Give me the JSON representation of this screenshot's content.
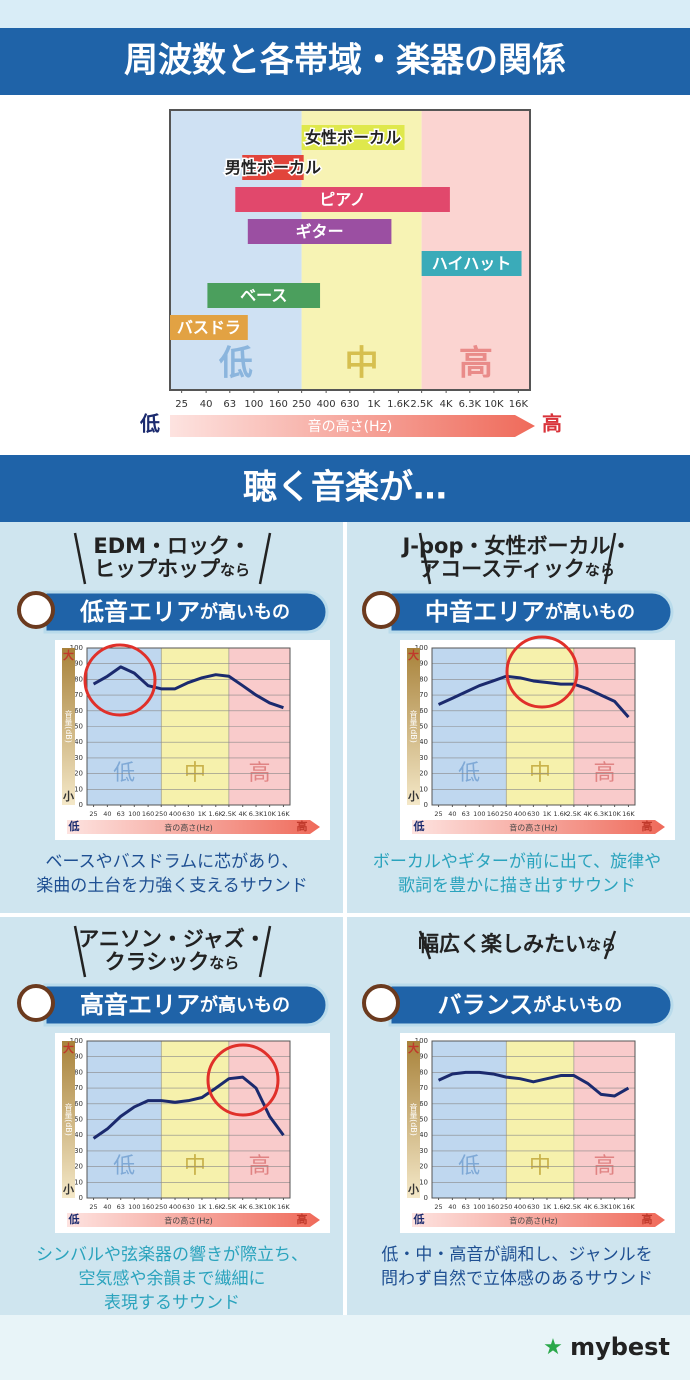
{
  "title": "周波数と各帯域・楽器の関係",
  "section_title": "聴く音楽が…",
  "brand": "mybest",
  "panels": [
    {
      "genre": [
        "EDM・ロック・",
        "ヒップホップ"
      ],
      "genre_suffix": "なら",
      "headline": "低音エリア",
      "headline_suffix": "が高いもの",
      "caption": [
        "ベースやバスドラムに芯があり、",
        "楽曲の土台を力強く支えるサウンド"
      ]
    },
    {
      "genre": [
        "J-pop・女性ボーカル・",
        "アコースティック"
      ],
      "genre_suffix": "なら",
      "headline": "中音エリア",
      "headline_suffix": "が高いもの",
      "caption": [
        "ボーカルやギターが前に出て、旋律や",
        "歌詞を豊かに描き出すサウンド"
      ]
    },
    {
      "genre": [
        "アニソン・ジャズ・",
        "クラシック"
      ],
      "genre_suffix": "なら",
      "headline": "高音エリア",
      "headline_suffix": "が高いもの",
      "caption": [
        "シンバルや弦楽器の響きが際立ち、",
        "空気感や余韻まで繊細に",
        "表現するサウンド"
      ]
    },
    {
      "genre": [
        "幅広く楽しみたい"
      ],
      "genre_suffix": "なら",
      "headline": "バランス",
      "headline_suffix": "がよいもの",
      "caption": [
        "低・中・高音が調和し、ジャンルを",
        "問わず自然で立体感のあるサウンド"
      ]
    }
  ],
  "chart_data": [
    {
      "type": "range",
      "log_x": true,
      "xlim": [
        20,
        20000
      ],
      "xticks": [
        25,
        40,
        63,
        100,
        160,
        250,
        400,
        630,
        {
          "value": 1000,
          "label": "1K"
        },
        {
          "value": 1600,
          "label": "1.6K"
        },
        {
          "value": 2500,
          "label": "2.5K"
        },
        {
          "value": 4000,
          "label": "4K"
        },
        {
          "value": 6300,
          "label": "6.3K"
        },
        {
          "value": 10000,
          "label": "10K"
        },
        {
          "value": 16000,
          "label": "16K"
        }
      ],
      "xlabel": "音の高さ(Hz)",
      "xlabel_low": "低",
      "xlabel_high": "高",
      "zones": [
        {
          "label": "低",
          "from": 20,
          "to": 250,
          "color": "#cfe1f3"
        },
        {
          "label": "中",
          "from": 250,
          "to": 2500,
          "color": "#f7f3b4"
        },
        {
          "label": "高",
          "from": 2500,
          "to": 20000,
          "color": "#fbd4d1"
        }
      ],
      "bars": [
        {
          "label": "女性ボーカル",
          "from": 250,
          "to": 1800,
          "color": "#dfe84c",
          "label_color": "#222"
        },
        {
          "label": "男性ボーカル",
          "from": 80,
          "to": 260,
          "color": "#e2443b",
          "label_color": "#222"
        },
        {
          "label": "ピアノ",
          "from": 70,
          "to": 4300,
          "color": "#e1486c",
          "label_color": "#fff"
        },
        {
          "label": "ギター",
          "from": 89,
          "to": 1400,
          "color": "#9b4fa2",
          "label_color": "#fff"
        },
        {
          "label": "ハイハット",
          "from": 2500,
          "to": 17000,
          "color": "#3aabb9",
          "label_color": "#fff"
        },
        {
          "label": "ベース",
          "from": 41,
          "to": 356,
          "color": "#4b9f5d",
          "label_color": "#fff"
        },
        {
          "label": "バスドラ",
          "from": 20,
          "to": 89,
          "color": "#e2a243",
          "label_color": "#fff"
        }
      ]
    },
    {
      "type": "line",
      "log_x": true,
      "grid": true,
      "xlim": [
        20,
        20000
      ],
      "ylim": [
        0,
        100
      ],
      "yticks": [
        0,
        10,
        20,
        30,
        40,
        50,
        60,
        70,
        80,
        90,
        100
      ],
      "xticks": [
        25,
        40,
        63,
        100,
        160,
        250,
        400,
        630,
        {
          "value": 1000,
          "label": "1K"
        },
        {
          "value": 1600,
          "label": "1.6K"
        },
        {
          "value": 2500,
          "label": "2.5K"
        },
        {
          "value": 4000,
          "label": "4K"
        },
        {
          "value": 6300,
          "label": "6.3K"
        },
        {
          "value": 10000,
          "label": "10K"
        },
        {
          "value": 16000,
          "label": "16K"
        }
      ],
      "xlabel": "音の高さ(Hz)",
      "xlabel_low": "低",
      "xlabel_high": "高",
      "ylabel": "音量(dB)",
      "ylabel_top": "大",
      "ylabel_bottom": "小",
      "zones": [
        {
          "label": "低",
          "from": 20,
          "to": 250,
          "color": "#bfd7ef"
        },
        {
          "label": "中",
          "from": 250,
          "to": 2500,
          "color": "#f6f1ac"
        },
        {
          "label": "高",
          "from": 2500,
          "to": 20000,
          "color": "#f9cbcb"
        }
      ],
      "x": [
        25,
        40,
        63,
        100,
        160,
        250,
        400,
        630,
        1000,
        1600,
        2500,
        4000,
        6300,
        10000,
        16000
      ],
      "series": [
        {
          "color": "#1b2a6e",
          "values": [
            77,
            82,
            88,
            84,
            76,
            74,
            74,
            78,
            81,
            83,
            82,
            76,
            70,
            65,
            62
          ]
        }
      ]
    },
    {
      "type": "line",
      "log_x": true,
      "grid": true,
      "xlim": [
        20,
        20000
      ],
      "ylim": [
        0,
        100
      ],
      "yticks": [
        0,
        10,
        20,
        30,
        40,
        50,
        60,
        70,
        80,
        90,
        100
      ],
      "xticks": [
        25,
        40,
        63,
        100,
        160,
        250,
        400,
        630,
        {
          "value": 1000,
          "label": "1K"
        },
        {
          "value": 1600,
          "label": "1.6K"
        },
        {
          "value": 2500,
          "label": "2.5K"
        },
        {
          "value": 4000,
          "label": "4K"
        },
        {
          "value": 6300,
          "label": "6.3K"
        },
        {
          "value": 10000,
          "label": "10K"
        },
        {
          "value": 16000,
          "label": "16K"
        }
      ],
      "xlabel": "音の高さ(Hz)",
      "xlabel_low": "低",
      "xlabel_high": "高",
      "ylabel": "音量(dB)",
      "ylabel_top": "大",
      "ylabel_bottom": "小",
      "zones": [
        {
          "label": "低",
          "from": 20,
          "to": 250,
          "color": "#bfd7ef"
        },
        {
          "label": "中",
          "from": 250,
          "to": 2500,
          "color": "#f6f1ac"
        },
        {
          "label": "高",
          "from": 2500,
          "to": 20000,
          "color": "#f9cbcb"
        }
      ],
      "x": [
        25,
        40,
        63,
        100,
        160,
        250,
        400,
        630,
        1000,
        1600,
        2500,
        4000,
        6300,
        10000,
        16000
      ],
      "series": [
        {
          "color": "#1b2a6e",
          "values": [
            64,
            68,
            72,
            76,
            79,
            82,
            81,
            79,
            78,
            77,
            77,
            74,
            70,
            66,
            56
          ]
        }
      ]
    },
    {
      "type": "line",
      "log_x": true,
      "grid": true,
      "xlim": [
        20,
        20000
      ],
      "ylim": [
        0,
        100
      ],
      "yticks": [
        0,
        10,
        20,
        30,
        40,
        50,
        60,
        70,
        80,
        90,
        100
      ],
      "xticks": [
        25,
        40,
        63,
        100,
        160,
        250,
        400,
        630,
        {
          "value": 1000,
          "label": "1K"
        },
        {
          "value": 1600,
          "label": "1.6K"
        },
        {
          "value": 2500,
          "label": "2.5K"
        },
        {
          "value": 4000,
          "label": "4K"
        },
        {
          "value": 6300,
          "label": "6.3K"
        },
        {
          "value": 10000,
          "label": "10K"
        },
        {
          "value": 16000,
          "label": "16K"
        }
      ],
      "xlabel": "音の高さ(Hz)",
      "xlabel_low": "低",
      "xlabel_high": "高",
      "ylabel": "音量(dB)",
      "ylabel_top": "大",
      "ylabel_bottom": "小",
      "zones": [
        {
          "label": "低",
          "from": 20,
          "to": 250,
          "color": "#bfd7ef"
        },
        {
          "label": "中",
          "from": 250,
          "to": 2500,
          "color": "#f6f1ac"
        },
        {
          "label": "高",
          "from": 2500,
          "to": 20000,
          "color": "#f9cbcb"
        }
      ],
      "x": [
        25,
        40,
        63,
        100,
        160,
        250,
        400,
        630,
        1000,
        1600,
        2500,
        4000,
        6300,
        10000,
        16000
      ],
      "series": [
        {
          "color": "#1b2a6e",
          "values": [
            38,
            44,
            52,
            58,
            62,
            62,
            61,
            62,
            64,
            70,
            76,
            77,
            70,
            52,
            40
          ]
        }
      ]
    },
    {
      "type": "line",
      "log_x": true,
      "grid": true,
      "xlim": [
        20,
        20000
      ],
      "ylim": [
        0,
        100
      ],
      "yticks": [
        0,
        10,
        20,
        30,
        40,
        50,
        60,
        70,
        80,
        90,
        100
      ],
      "xticks": [
        25,
        40,
        63,
        100,
        160,
        250,
        400,
        630,
        {
          "value": 1000,
          "label": "1K"
        },
        {
          "value": 1600,
          "label": "1.6K"
        },
        {
          "value": 2500,
          "label": "2.5K"
        },
        {
          "value": 4000,
          "label": "4K"
        },
        {
          "value": 6300,
          "label": "6.3K"
        },
        {
          "value": 10000,
          "label": "10K"
        },
        {
          "value": 16000,
          "label": "16K"
        }
      ],
      "xlabel": "音の高さ(Hz)",
      "xlabel_low": "低",
      "xlabel_high": "高",
      "ylabel": "音量(dB)",
      "ylabel_top": "大",
      "ylabel_bottom": "小",
      "zones": [
        {
          "label": "低",
          "from": 20,
          "to": 250,
          "color": "#bfd7ef"
        },
        {
          "label": "中",
          "from": 250,
          "to": 2500,
          "color": "#f6f1ac"
        },
        {
          "label": "高",
          "from": 2500,
          "to": 20000,
          "color": "#f9cbcb"
        }
      ],
      "x": [
        25,
        40,
        63,
        100,
        160,
        250,
        400,
        630,
        1000,
        1600,
        2500,
        4000,
        6300,
        10000,
        16000
      ],
      "series": [
        {
          "color": "#1b2a6e",
          "values": [
            75,
            79,
            80,
            80,
            79,
            77,
            76,
            74,
            76,
            78,
            78,
            73,
            66,
            65,
            70
          ]
        }
      ]
    }
  ]
}
